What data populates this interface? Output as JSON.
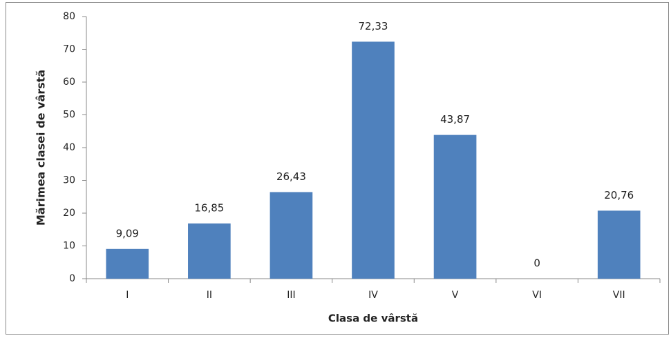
{
  "chart_data": {
    "type": "bar",
    "categories": [
      "I",
      "II",
      "III",
      "IV",
      "V",
      "VI",
      "VII"
    ],
    "values": [
      9.09,
      16.85,
      26.43,
      72.33,
      43.87,
      0,
      20.76
    ],
    "value_labels": [
      "9,09",
      "16,85",
      "26,43",
      "72,33",
      "43,87",
      "0",
      "20,76"
    ],
    "color": "#4f81bd",
    "ylim": [
      0,
      80
    ],
    "yticks": [
      0,
      10,
      20,
      30,
      40,
      50,
      60,
      70,
      80
    ],
    "xlabel": "Clasa de vârstă",
    "ylabel": "Mărimea clasei de vârstă",
    "grid": false
  }
}
